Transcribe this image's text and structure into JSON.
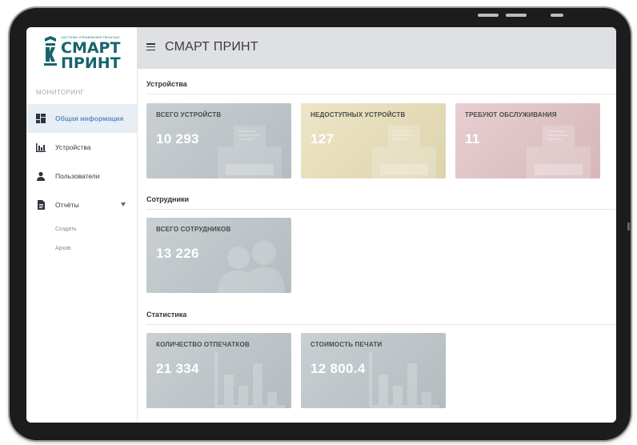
{
  "logo": {
    "tagline": "СИСТЕМА УПРАВЛЕНИЯ ПЕЧАТЬЮ",
    "name": "СМАРТ ПРИНТ"
  },
  "header": {
    "title": "СМАРТ ПРИНТ"
  },
  "sidebar": {
    "section_title": "МОНИТОРИНГ",
    "items": [
      {
        "label": "Общая информация",
        "icon": "dashboard-icon",
        "active": true
      },
      {
        "label": "Устройства",
        "icon": "bar-chart-icon",
        "active": false
      },
      {
        "label": "Пользователи",
        "icon": "user-icon",
        "active": false
      },
      {
        "label": "Отчёты",
        "icon": "document-icon",
        "active": false
      }
    ],
    "sub_items": [
      "Создать",
      "Архив"
    ]
  },
  "sections": {
    "devices": {
      "title": "Устройства",
      "cards": [
        {
          "label": "ВСЕГО УСТРОЙСТВ",
          "value": "10 293",
          "color": "#bcc3c7"
        },
        {
          "label": "НЕДОСТУПНЫХ УСТРОЙСТВ",
          "value": "127",
          "color": "#e6dcb9"
        },
        {
          "label": "ТРЕБУЮТ ОБСЛУЖИВАНИЯ",
          "value": "11",
          "color": "#dfc2c5"
        }
      ]
    },
    "staff": {
      "title": "Сотрудники",
      "cards": [
        {
          "label": "ВСЕГО СОТРУДНИКОВ",
          "value": "13 226",
          "color": "#bcc3c7"
        }
      ]
    },
    "stats": {
      "title": "Статистика",
      "cards": [
        {
          "label": "КОЛИЧЕСТВО ОТПЕЧАТКОВ",
          "value": "21 334",
          "color": "#bcc3c7"
        },
        {
          "label": "СТОИМОСТЬ ПЕЧАТИ",
          "value": "12 800.4",
          "color": "#bcc3c7"
        }
      ]
    }
  }
}
